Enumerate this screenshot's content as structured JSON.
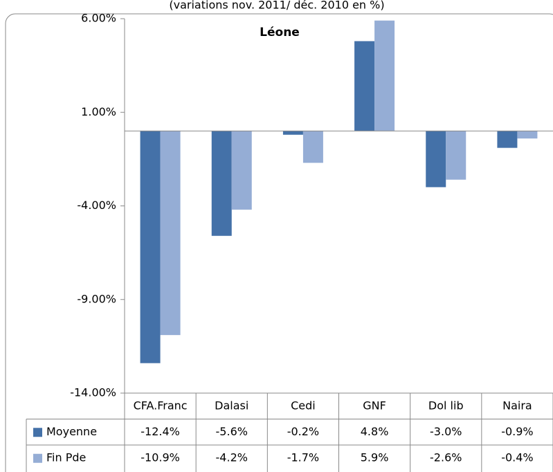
{
  "chart_data": {
    "type": "bar",
    "subtitle": "(variations nov. 2011/ déc. 2010 en %)",
    "title": "Léone",
    "categories": [
      "CFA.Franc",
      "Dalasi",
      "Cedi",
      "GNF",
      "Dol lib",
      "Naira"
    ],
    "series": [
      {
        "name": "Moyenne",
        "color": "#4471a8",
        "values": [
          -12.4,
          -5.6,
          -0.2,
          4.8,
          -3.0,
          -0.9
        ],
        "value_labels": [
          "-12.4%",
          "-5.6%",
          "-0.2%",
          "4.8%",
          "-3.0%",
          "-0.9%"
        ]
      },
      {
        "name": "Fin Pde",
        "color": "#95add5",
        "values": [
          -10.9,
          -4.2,
          -1.7,
          5.9,
          -2.6,
          -0.4
        ],
        "value_labels": [
          "-10.9%",
          "-4.2%",
          "-1.7%",
          "5.9%",
          "-2.6%",
          "-0.4%"
        ]
      }
    ],
    "ylim": [
      -14,
      6
    ],
    "yticks": [
      {
        "value": 6,
        "label": "6.00%"
      },
      {
        "value": 1,
        "label": "1.00%"
      },
      {
        "value": -4,
        "label": "-4.00%"
      },
      {
        "value": -9,
        "label": "-9.00%"
      },
      {
        "value": -14,
        "label": "-14.00%"
      }
    ],
    "grid": false
  }
}
